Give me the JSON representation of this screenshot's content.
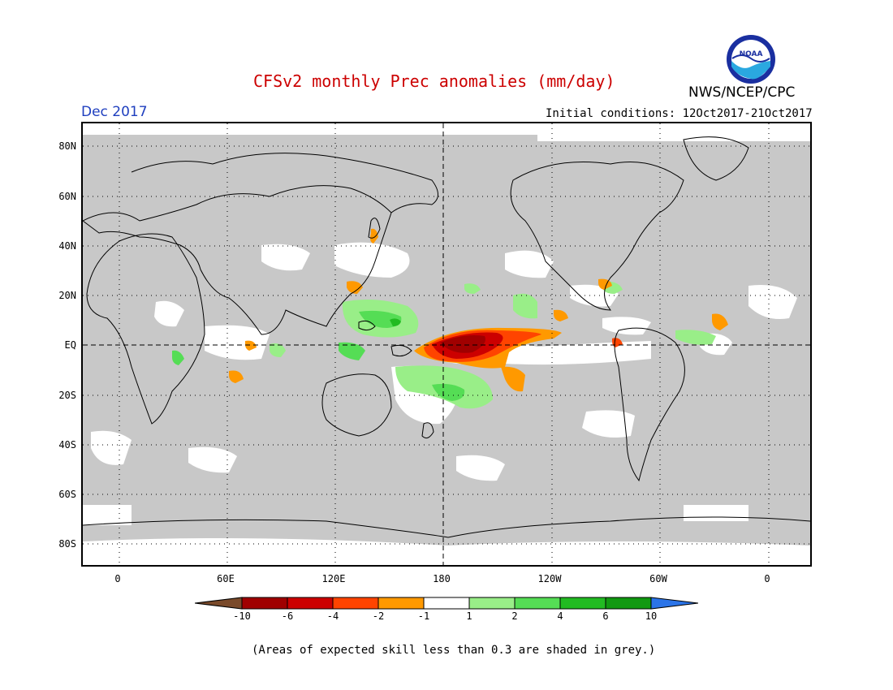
{
  "header": {
    "title": "CFSv2 monthly Prec anomalies (mm/day)",
    "agency": "NWS/NCEP/CPC",
    "logo_text": "NOAA",
    "month": "Dec 2017",
    "initial_conditions": "Initial conditions: 12Oct2017-21Oct2017"
  },
  "axes": {
    "lat_labels": [
      "80N",
      "60N",
      "40N",
      "20N",
      "EQ",
      "20S",
      "40S",
      "60S",
      "80S"
    ],
    "lon_labels": [
      "0",
      "60E",
      "120E",
      "180",
      "120W",
      "60W",
      "0"
    ]
  },
  "colorbar": {
    "ticks": [
      "-10",
      "-6",
      "-4",
      "-2",
      "-1",
      "1",
      "2",
      "4",
      "6",
      "10"
    ],
    "colors": [
      "#7a4a2a",
      "#a00000",
      "#cc0000",
      "#ff4400",
      "#ff9900",
      "#ffffff",
      "#99ee88",
      "#55dd55",
      "#22bb22",
      "#119911",
      "#2b74e8"
    ]
  },
  "footer": {
    "note": "(Areas of expected skill less than 0.3 are shaded in grey.)"
  },
  "colors": {
    "grey_skill": "#c8c8c8",
    "title": "#cc0000",
    "month": "#1f3fbf"
  }
}
